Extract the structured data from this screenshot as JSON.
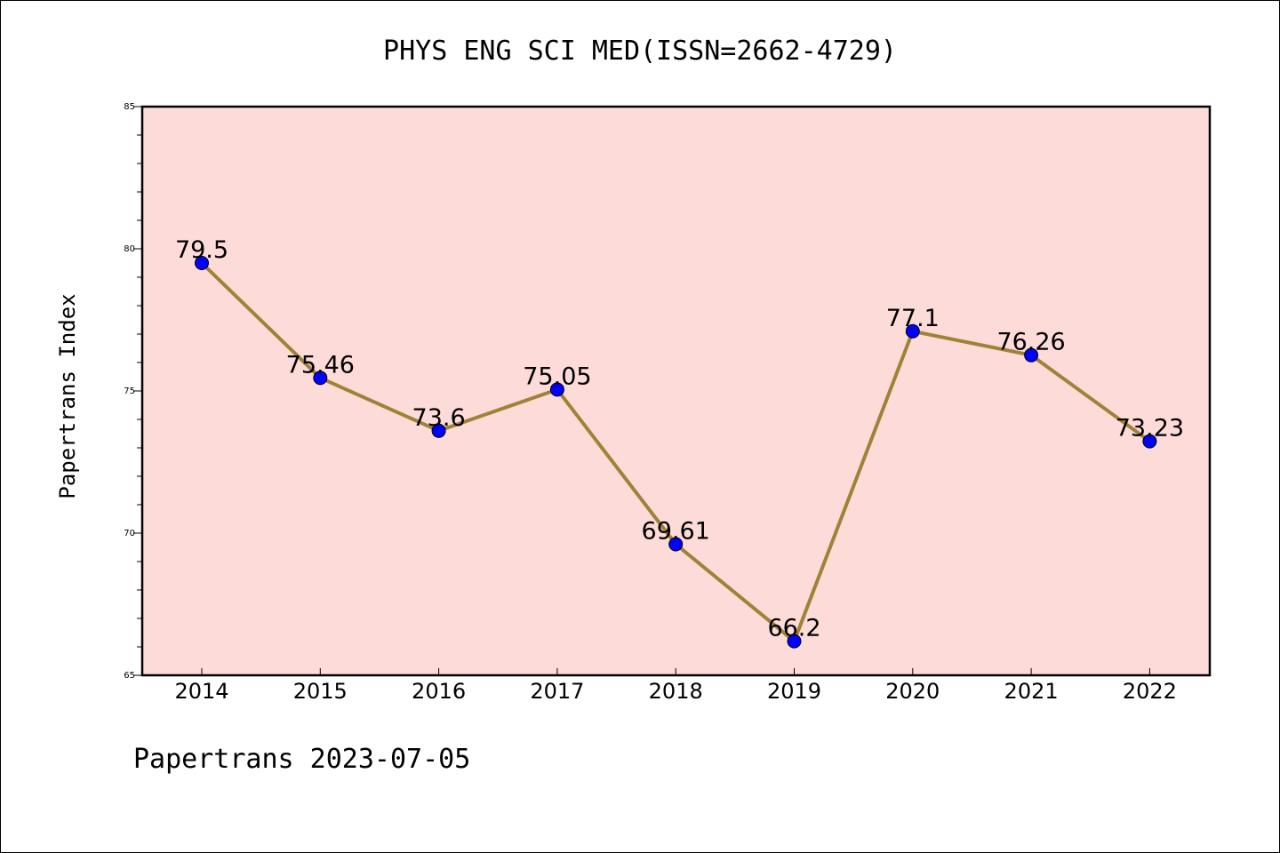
{
  "chart_data": {
    "type": "line",
    "title": "PHYS ENG SCI MED(ISSN=2662-4729)",
    "xlabel": "",
    "ylabel": "Papertrans Index",
    "footer": "Papertrans 2023-07-05",
    "categories": [
      "2014",
      "2015",
      "2016",
      "2017",
      "2018",
      "2019",
      "2020",
      "2021",
      "2022"
    ],
    "series": [
      {
        "values": [
          79.5,
          75.46,
          73.6,
          75.05,
          69.61,
          66.2,
          77.1,
          76.26,
          73.23
        ],
        "labels": [
          "79.5",
          "75.46",
          "73.6",
          "75.05",
          "69.61",
          "66.2",
          "77.1",
          "76.26",
          "73.23"
        ]
      }
    ],
    "ylim": [
      65,
      85
    ],
    "yticks": [
      65,
      70,
      75,
      80,
      85
    ],
    "grid": false,
    "legend": "none",
    "colors": {
      "plot_background": "#fddbd8",
      "line": "#a08237",
      "marker": "#0000ff"
    }
  }
}
